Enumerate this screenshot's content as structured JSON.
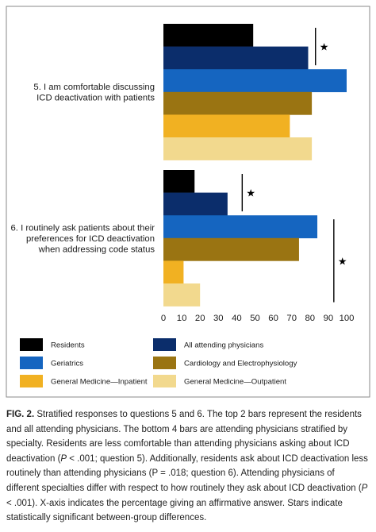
{
  "chart_data": {
    "type": "bar",
    "orientation": "horizontal",
    "categories": [
      "5. I am comfortable discussing ICD deactivation with patients",
      "6. I routinely ask patients about their preferences for ICD deactivation when addressing code status"
    ],
    "category_lines": [
      [
        "5. I am comfortable discussing",
        "ICD deactivation with patients"
      ],
      [
        "6. I routinely ask patients about their",
        "preferences for ICD deactivation",
        "when addressing code status"
      ]
    ],
    "series": [
      {
        "name": "Residents",
        "color": "#000000",
        "values": [
          49,
          17
        ]
      },
      {
        "name": "All attending physicians",
        "color": "#0b2d6b",
        "values": [
          79,
          35
        ]
      },
      {
        "name": "Geriatrics",
        "color": "#1565c0",
        "values": [
          100,
          84
        ]
      },
      {
        "name": "Cardiology and Electrophysiology",
        "color": "#9a7412",
        "values": [
          81,
          74
        ]
      },
      {
        "name": "General Medicine—Inpatient",
        "color": "#f1b122",
        "values": [
          69,
          11
        ]
      },
      {
        "name": "General Medicine—Outpatient",
        "color": "#f2d98e",
        "values": [
          81,
          20
        ]
      }
    ],
    "xlim": [
      0,
      100
    ],
    "x_ticks": [
      0,
      10,
      20,
      30,
      40,
      50,
      60,
      70,
      80,
      90,
      100
    ],
    "significance": [
      {
        "category": 0,
        "series_from": 0,
        "series_to": 1,
        "value": 83,
        "marker": "★"
      },
      {
        "category": 1,
        "series_from": 0,
        "series_to": 1,
        "value": 43,
        "marker": "★"
      },
      {
        "category": 1,
        "series_from": 2,
        "series_to": 5,
        "value": 93,
        "marker": "★"
      }
    ],
    "legend_order": [
      0,
      1,
      2,
      3,
      4,
      5
    ],
    "legend_placement": "bottom",
    "grid": false
  },
  "caption": {
    "label": "FIG. 2.",
    "segments": [
      {
        "t": " Stratified responses to questions 5 and 6. The top 2 bars represent the residents and all attending physicians. The bottom 4 bars are attending physicians stratified by specialty. Residents are less comfortable than attending physicians asking about ICD deactivation (",
        "i": false
      },
      {
        "t": "P",
        "i": true
      },
      {
        "t": " < .001; question 5). Additionally, residents ask about ICD deactivation less routinely than attending physicians (P = .018; question 6). Attending physicians of different specialties differ with respect to how routinely they ask about ICD deactivation (",
        "i": false
      },
      {
        "t": "P",
        "i": true
      },
      {
        "t": " < .001). X-axis indicates the percentage giving an affirmative answer. Stars indicate statistically significant between-group differences.",
        "i": false
      }
    ]
  }
}
